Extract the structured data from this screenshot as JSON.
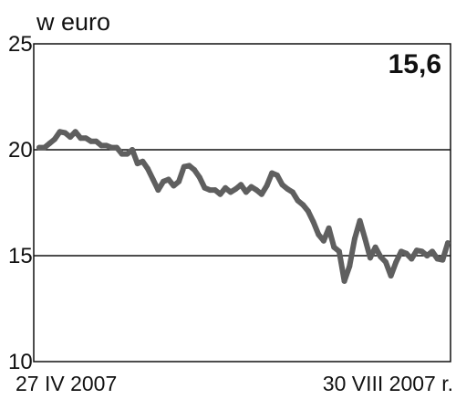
{
  "chart_data": {
    "type": "line",
    "title": "",
    "unit_label": "w euro",
    "xlabel": "",
    "ylabel": "",
    "x_start_label": "27 IV 2007",
    "x_end_label": "30 VIII 2007 r.",
    "ylim": [
      10,
      25
    ],
    "y_ticks": [
      10,
      15,
      20,
      25
    ],
    "gridlines": [
      15,
      20
    ],
    "latest_value_label": "15,6",
    "line_color": "#5f5f5f",
    "grid_color": "#111111",
    "series": [
      {
        "values": [
          20.1,
          20.1,
          20.3,
          20.5,
          20.85,
          20.8,
          20.6,
          20.85,
          20.55,
          20.55,
          20.4,
          20.4,
          20.2,
          20.2,
          20.1,
          20.1,
          19.8,
          19.8,
          20.0,
          19.35,
          19.45,
          19.1,
          18.6,
          18.1,
          18.5,
          18.6,
          18.3,
          18.5,
          19.2,
          19.25,
          19.05,
          18.7,
          18.2,
          18.1,
          18.1,
          17.9,
          18.2,
          18.0,
          18.15,
          18.35,
          18.0,
          18.25,
          18.1,
          17.9,
          18.3,
          18.9,
          18.8,
          18.35,
          18.15,
          18.0,
          17.6,
          17.4,
          17.1,
          16.6,
          16.0,
          15.7,
          16.3,
          15.4,
          15.2,
          13.8,
          14.5,
          15.8,
          16.65,
          15.8,
          14.9,
          15.4,
          14.95,
          14.7,
          14.05,
          14.7,
          15.2,
          15.1,
          14.85,
          15.25,
          15.2,
          15.0,
          15.2,
          14.85,
          14.8,
          15.6
        ]
      }
    ]
  }
}
